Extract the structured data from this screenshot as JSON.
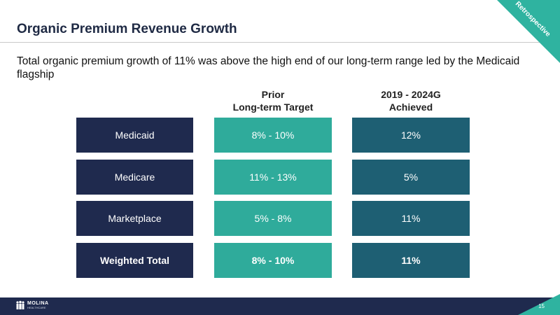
{
  "slide": {
    "title": "Organic Premium Revenue Growth",
    "ribbon": "Retrospective",
    "subtitle": "Total organic premium growth of 11% was above the high end of our long-term range led by the Medicaid flagship",
    "page_number": "15"
  },
  "table": {
    "headers": {
      "prior": "Prior\nLong-term Target",
      "achieved": "2019 - 2024G\nAchieved"
    },
    "rows": [
      {
        "label": "Medicaid",
        "prior": "8% - 10%",
        "achieved": "12%"
      },
      {
        "label": "Medicare",
        "prior": "11% - 13%",
        "achieved": "5%"
      },
      {
        "label": "Marketplace",
        "prior": "5% - 8%",
        "achieved": "11%"
      },
      {
        "label": "Weighted Total",
        "prior": "8% - 10%",
        "achieved": "11%"
      }
    ]
  },
  "logo": {
    "name": "MOLINA",
    "sub": "HEALTHCARE"
  },
  "colors": {
    "navy": "#1f2a4e",
    "teal": "#2fab9b",
    "dark_teal": "#1e5f73",
    "accent": "#2fb3a0"
  }
}
